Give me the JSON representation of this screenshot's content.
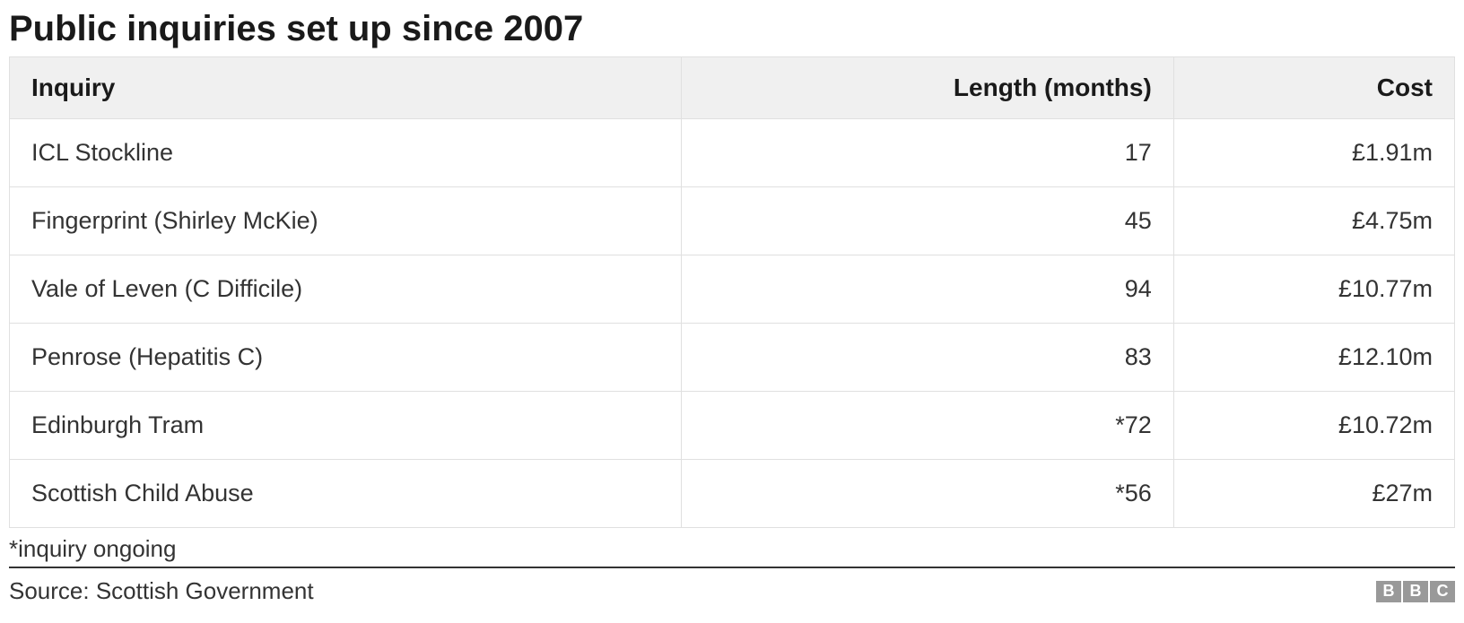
{
  "title": "Public inquiries set up since 2007",
  "table": {
    "columns": [
      {
        "key": "inquiry",
        "label": "Inquiry",
        "align": "left",
        "width_pct": 30
      },
      {
        "key": "length",
        "label": "Length (months)",
        "align": "right",
        "width_pct": 35
      },
      {
        "key": "cost",
        "label": "Cost",
        "align": "right",
        "width_pct": 35
      }
    ],
    "rows": [
      {
        "inquiry": "ICL Stockline",
        "length": "17",
        "cost": "£1.91m"
      },
      {
        "inquiry": "Fingerprint (Shirley McKie)",
        "length": "45",
        "cost": "£4.75m"
      },
      {
        "inquiry": "Vale of Leven (C Difficile)",
        "length": "94",
        "cost": "£10.77m"
      },
      {
        "inquiry": "Penrose (Hepatitis C)",
        "length": "83",
        "cost": "£12.10m"
      },
      {
        "inquiry": "Edinburgh Tram",
        "length": "*72",
        "cost": "£10.72m"
      },
      {
        "inquiry": "Scottish Child Abuse",
        "length": "*56",
        "cost": "£27m"
      }
    ],
    "header_bg": "#f0f0f0",
    "border_color": "#e0e0e0",
    "header_fontsize": 28,
    "cell_fontsize": 27,
    "cell_padding": "22px 24px",
    "header_padding": "18px 24px"
  },
  "footnote": "*inquiry ongoing",
  "source": "Source: Scottish Government",
  "logo": {
    "letters": [
      "B",
      "B",
      "C"
    ],
    "box_bg": "#999999",
    "text_color": "#ffffff"
  },
  "colors": {
    "background": "#ffffff",
    "text": "#333333",
    "title": "#1a1a1a",
    "divider": "#333333"
  },
  "typography": {
    "title_fontsize": 40,
    "title_weight": "bold",
    "footnote_fontsize": 26,
    "source_fontsize": 26,
    "font_family": "Arial, Helvetica, sans-serif"
  }
}
